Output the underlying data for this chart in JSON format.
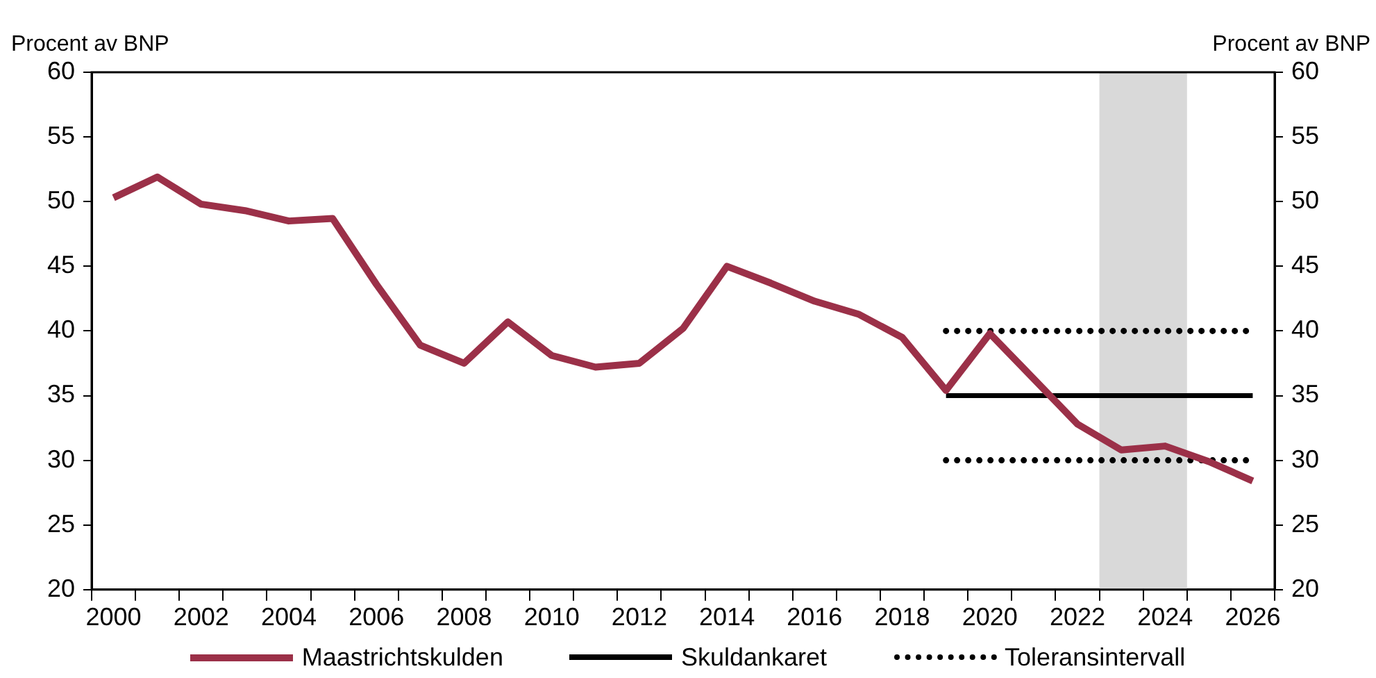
{
  "chart_data": {
    "type": "line",
    "ylabel": "Procent av BNP",
    "y2label": "Procent av BNP",
    "x": [
      2000,
      2001,
      2002,
      2003,
      2004,
      2005,
      2006,
      2007,
      2008,
      2009,
      2010,
      2011,
      2012,
      2013,
      2014,
      2015,
      2016,
      2017,
      2018,
      2019,
      2020,
      2021,
      2022,
      2023,
      2024,
      2025,
      2026
    ],
    "series": [
      {
        "name": "Maastrichtskulden",
        "color": "#9b3048",
        "values": [
          50.3,
          51.9,
          49.8,
          49.3,
          48.5,
          48.7,
          43.6,
          38.9,
          37.5,
          40.7,
          38.1,
          37.2,
          37.5,
          40.2,
          45.0,
          43.7,
          42.3,
          41.3,
          39.5,
          35.4,
          39.8,
          36.3,
          32.8,
          30.8,
          31.1,
          29.9,
          28.4
        ]
      },
      {
        "name": "Skuldankaret",
        "color": "#000000",
        "values": [
          null,
          null,
          null,
          null,
          null,
          null,
          null,
          null,
          null,
          null,
          null,
          null,
          null,
          null,
          null,
          null,
          null,
          null,
          null,
          35,
          35,
          35,
          35,
          35,
          35,
          35,
          35
        ]
      },
      {
        "name": "Toleransintervall",
        "color": "#000000",
        "line_style": "dotted",
        "values": [
          null,
          null,
          null,
          null,
          null,
          null,
          null,
          null,
          null,
          null,
          null,
          null,
          null,
          null,
          null,
          null,
          null,
          null,
          null,
          40,
          40,
          40,
          40,
          40,
          40,
          40,
          40
        ]
      },
      {
        "color": "#000000",
        "line_style": "dotted",
        "values": [
          null,
          null,
          null,
          null,
          null,
          null,
          null,
          null,
          null,
          null,
          null,
          null,
          null,
          null,
          null,
          null,
          null,
          null,
          null,
          30,
          30,
          30,
          30,
          30,
          30,
          30,
          30
        ]
      }
    ],
    "xlim": [
      1999.5,
      2026.5
    ],
    "xticks": [
      {
        "value": 1999.5,
        "label": null
      },
      2000,
      {
        "value": 2000.5,
        "label": null
      },
      {
        "value": 2001.5,
        "label": null
      },
      2002,
      {
        "value": 2002.5,
        "label": null
      },
      {
        "value": 2003.5,
        "label": null
      },
      2004,
      {
        "value": 2004.5,
        "label": null
      },
      {
        "value": 2005.5,
        "label": null
      },
      2006,
      {
        "value": 2006.5,
        "label": null
      },
      {
        "value": 2007.5,
        "label": null
      },
      2008,
      {
        "value": 2008.5,
        "label": null
      },
      {
        "value": 2009.5,
        "label": null
      },
      2010,
      {
        "value": 2010.5,
        "label": null
      },
      {
        "value": 2011.5,
        "label": null
      },
      2012,
      {
        "value": 2012.5,
        "label": null
      },
      {
        "value": 2013.5,
        "label": null
      },
      2014,
      {
        "value": 2014.5,
        "label": null
      },
      {
        "value": 2015.5,
        "label": null
      },
      2016,
      {
        "value": 2016.5,
        "label": null
      },
      {
        "value": 2017.5,
        "label": null
      },
      2018,
      {
        "value": 2018.5,
        "label": null
      },
      {
        "value": 2019.5,
        "label": null
      },
      2020,
      {
        "value": 2020.5,
        "label": null
      },
      {
        "value": 2021.5,
        "label": null
      },
      2022,
      {
        "value": 2022.5,
        "label": null
      },
      {
        "value": 2023.5,
        "label": null
      },
      2024,
      {
        "value": 2024.5,
        "label": null
      },
      {
        "value": 2025.5,
        "label": null
      },
      2026,
      {
        "value": 2026.5,
        "label": null
      }
    ],
    "ylim": [
      20,
      60
    ],
    "yticks": [
      20,
      25,
      30,
      35,
      40,
      45,
      50,
      55,
      60
    ],
    "y2lim": [
      20,
      60
    ],
    "y2ticks": [
      20,
      25,
      30,
      35,
      40,
      45,
      50,
      55,
      60
    ],
    "bands": [
      {
        "axis": "x",
        "from": 2022.5,
        "to": 2024.5,
        "color": "#d9d9d9"
      }
    ],
    "grid": false,
    "legend": "bottom",
    "marker": "none"
  }
}
